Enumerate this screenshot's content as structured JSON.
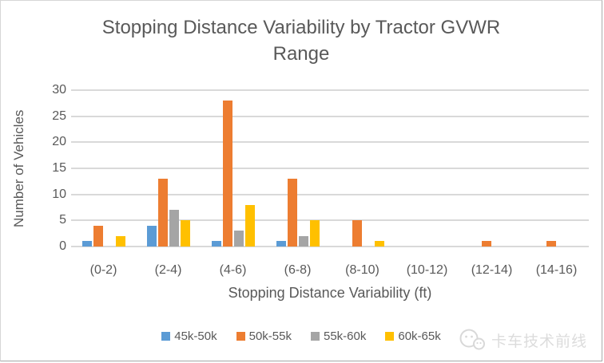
{
  "title": {
    "line1": "Stopping Distance Variability by Tractor GVWR",
    "line2": "Range"
  },
  "chart_data": {
    "type": "bar",
    "title": "Stopping Distance Variability by Tractor GVWR Range",
    "xlabel": "Stopping Distance Variability (ft)",
    "ylabel": "Number of Vehicles",
    "ylim": [
      0,
      30
    ],
    "yticks": [
      0,
      5,
      10,
      15,
      20,
      25,
      30
    ],
    "grid": true,
    "legend_position": "bottom",
    "categories": [
      "(0-2)",
      "(2-4)",
      "(4-6)",
      "(6-8)",
      "(8-10)",
      "(10-12)",
      "(12-14)",
      "(14-16)"
    ],
    "series": [
      {
        "name": "45k-50k",
        "color": "#5B9BD5",
        "values": [
          1,
          4,
          1,
          1,
          0,
          0,
          0,
          0
        ]
      },
      {
        "name": "50k-55k",
        "color": "#ED7D31",
        "values": [
          4,
          13,
          28,
          13,
          5,
          0,
          1,
          1
        ]
      },
      {
        "name": "55k-60k",
        "color": "#A5A5A5",
        "values": [
          0,
          7,
          3,
          2,
          0,
          0,
          0,
          0
        ]
      },
      {
        "name": "60k-65k",
        "color": "#FFC000",
        "values": [
          2,
          5,
          8,
          5,
          1,
          0,
          0,
          0
        ]
      }
    ]
  },
  "watermark": {
    "text": "卡车技术前线",
    "icon": "wechat-logo-icon"
  },
  "colors": {
    "text": "#595959",
    "gridline": "#D9D9D9",
    "border": "#ABABAB",
    "background": "#FFFFFF"
  }
}
